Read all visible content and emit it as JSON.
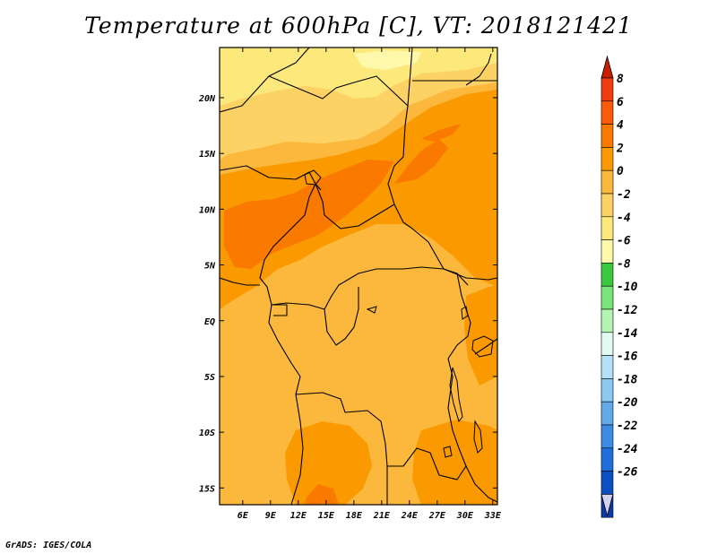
{
  "title": "Temperature at 600hPa [C], VT: 2018121421",
  "credit": "GrADS: IGES/COLA",
  "map": {
    "lon_range": [
      3.5,
      33.5
    ],
    "lat_range": [
      -16.5,
      24.5
    ],
    "lon_ticks": [
      {
        "value": 6,
        "label": "6E"
      },
      {
        "value": 9,
        "label": "9E"
      },
      {
        "value": 12,
        "label": "12E"
      },
      {
        "value": 15,
        "label": "15E"
      },
      {
        "value": 18,
        "label": "18E"
      },
      {
        "value": 21,
        "label": "21E"
      },
      {
        "value": 24,
        "label": "24E"
      },
      {
        "value": 27,
        "label": "27E"
      },
      {
        "value": 30,
        "label": "30E"
      },
      {
        "value": 33,
        "label": "33E"
      }
    ],
    "lat_ticks": [
      {
        "value": 20,
        "label": "20N"
      },
      {
        "value": 15,
        "label": "15N"
      },
      {
        "value": 10,
        "label": "10N"
      },
      {
        "value": 5,
        "label": "5N"
      },
      {
        "value": 0,
        "label": "EQ"
      },
      {
        "value": -5,
        "label": "5S"
      },
      {
        "value": -10,
        "label": "10S"
      },
      {
        "value": -15,
        "label": "15S"
      }
    ]
  },
  "colorbar": {
    "levels": [
      {
        "label": "8",
        "color": "#f03c10"
      },
      {
        "label": "6",
        "color": "#fa5a0a"
      },
      {
        "label": "4",
        "color": "#fa7a00"
      },
      {
        "label": "2",
        "color": "#fa9a00"
      },
      {
        "label": "0",
        "color": "#fbb83c"
      },
      {
        "label": "-2",
        "color": "#fcd264"
      },
      {
        "label": "-4",
        "color": "#fde87c"
      },
      {
        "label": "-6",
        "color": "#fef8aa"
      },
      {
        "label": "-8",
        "color": "#3cc83c"
      },
      {
        "label": "-10",
        "color": "#78e678"
      },
      {
        "label": "-12",
        "color": "#b4f5b4"
      },
      {
        "label": "-14",
        "color": "#e0fbf0"
      },
      {
        "label": "-16",
        "color": "#b4e0f8"
      },
      {
        "label": "-18",
        "color": "#8cc8f0"
      },
      {
        "label": "-20",
        "color": "#64aaeb"
      },
      {
        "label": "-22",
        "color": "#3c8ce6"
      },
      {
        "label": "-24",
        "color": "#1e6edc"
      },
      {
        "label": "-26",
        "color": "#0a50c3"
      }
    ],
    "top_arrow_color": "#c81e00",
    "bottom_colors": [
      "#0a3aa8",
      "#0a1e7a"
    ],
    "bottom_arrow_color": "#d2d2f0"
  }
}
